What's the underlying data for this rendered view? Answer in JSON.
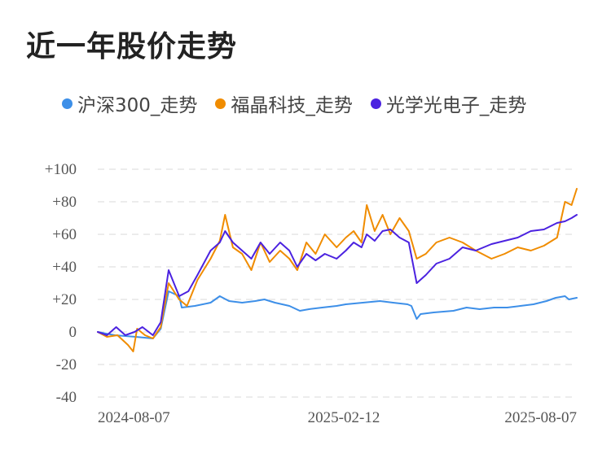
{
  "chart_data": {
    "type": "line",
    "title": "近一年股价走势",
    "xlabel": "",
    "ylabel": "",
    "ylim": [
      -40,
      100
    ],
    "yticks": [
      100,
      80,
      60,
      40,
      20,
      0,
      -20,
      -40
    ],
    "ytick_labels": [
      "+100",
      "+80",
      "+60",
      "+40",
      "+20",
      "0",
      "-20",
      "-40"
    ],
    "x_tick_labels": [
      "2024-08-07",
      "2025-02-12",
      "2025-08-07"
    ],
    "x_range": [
      "2024-08-07",
      "2025-08-07"
    ],
    "grid": "horizontal dashed",
    "legend_position": "top",
    "series": [
      {
        "name": "沪深300_走势",
        "color": "#3d8fe8",
        "points": [
          [
            "2024-08-07",
            0
          ],
          [
            "2024-08-20",
            -2
          ],
          [
            "2024-09-05",
            -3
          ],
          [
            "2024-09-18",
            -4
          ],
          [
            "2024-09-24",
            2
          ],
          [
            "2024-09-30",
            25
          ],
          [
            "2024-10-08",
            22
          ],
          [
            "2024-10-10",
            15
          ],
          [
            "2024-10-20",
            16
          ],
          [
            "2024-11-01",
            18
          ],
          [
            "2024-11-08",
            22
          ],
          [
            "2024-11-15",
            19
          ],
          [
            "2024-11-25",
            18
          ],
          [
            "2024-12-05",
            19
          ],
          [
            "2024-12-12",
            20
          ],
          [
            "2024-12-20",
            18
          ],
          [
            "2024-12-31",
            16
          ],
          [
            "2025-01-08",
            13
          ],
          [
            "2025-01-15",
            14
          ],
          [
            "2025-01-25",
            15
          ],
          [
            "2025-02-05",
            16
          ],
          [
            "2025-02-12",
            17
          ],
          [
            "2025-02-25",
            18
          ],
          [
            "2025-03-10",
            19
          ],
          [
            "2025-03-20",
            18
          ],
          [
            "2025-03-31",
            17
          ],
          [
            "2025-04-03",
            16
          ],
          [
            "2025-04-07",
            8
          ],
          [
            "2025-04-10",
            11
          ],
          [
            "2025-04-20",
            12
          ],
          [
            "2025-05-05",
            13
          ],
          [
            "2025-05-15",
            15
          ],
          [
            "2025-05-25",
            14
          ],
          [
            "2025-06-05",
            15
          ],
          [
            "2025-06-15",
            15
          ],
          [
            "2025-06-25",
            16
          ],
          [
            "2025-07-05",
            17
          ],
          [
            "2025-07-15",
            19
          ],
          [
            "2025-07-22",
            21
          ],
          [
            "2025-07-29",
            22
          ],
          [
            "2025-08-01",
            20
          ],
          [
            "2025-08-07",
            21
          ]
        ]
      },
      {
        "name": "福晶科技_走势",
        "color": "#f08c00",
        "points": [
          [
            "2024-08-07",
            0
          ],
          [
            "2024-08-14",
            -3
          ],
          [
            "2024-08-22",
            -2
          ],
          [
            "2024-08-30",
            -8
          ],
          [
            "2024-09-03",
            -12
          ],
          [
            "2024-09-06",
            2
          ],
          [
            "2024-09-12",
            -2
          ],
          [
            "2024-09-18",
            -4
          ],
          [
            "2024-09-24",
            3
          ],
          [
            "2024-09-30",
            30
          ],
          [
            "2024-10-08",
            20
          ],
          [
            "2024-10-14",
            16
          ],
          [
            "2024-10-22",
            32
          ],
          [
            "2024-11-01",
            45
          ],
          [
            "2024-11-08",
            56
          ],
          [
            "2024-11-12",
            72
          ],
          [
            "2024-11-18",
            52
          ],
          [
            "2024-11-25",
            48
          ],
          [
            "2024-12-02",
            38
          ],
          [
            "2024-12-09",
            55
          ],
          [
            "2024-12-16",
            43
          ],
          [
            "2024-12-24",
            50
          ],
          [
            "2024-12-31",
            45
          ],
          [
            "2025-01-06",
            38
          ],
          [
            "2025-01-13",
            55
          ],
          [
            "2025-01-20",
            48
          ],
          [
            "2025-01-27",
            60
          ],
          [
            "2025-02-05",
            52
          ],
          [
            "2025-02-12",
            58
          ],
          [
            "2025-02-18",
            62
          ],
          [
            "2025-02-24",
            55
          ],
          [
            "2025-02-28",
            78
          ],
          [
            "2025-03-06",
            62
          ],
          [
            "2025-03-12",
            72
          ],
          [
            "2025-03-18",
            60
          ],
          [
            "2025-03-25",
            70
          ],
          [
            "2025-04-01",
            62
          ],
          [
            "2025-04-07",
            45
          ],
          [
            "2025-04-14",
            48
          ],
          [
            "2025-04-22",
            55
          ],
          [
            "2025-05-02",
            58
          ],
          [
            "2025-05-12",
            55
          ],
          [
            "2025-05-22",
            50
          ],
          [
            "2025-06-03",
            45
          ],
          [
            "2025-06-13",
            48
          ],
          [
            "2025-06-23",
            52
          ],
          [
            "2025-07-03",
            50
          ],
          [
            "2025-07-13",
            53
          ],
          [
            "2025-07-23",
            58
          ],
          [
            "2025-07-29",
            80
          ],
          [
            "2025-08-03",
            78
          ],
          [
            "2025-08-07",
            88
          ]
        ]
      },
      {
        "name": "光学光电子_走势",
        "color": "#4b22e0",
        "points": [
          [
            "2024-08-07",
            0
          ],
          [
            "2024-08-14",
            -2
          ],
          [
            "2024-08-21",
            3
          ],
          [
            "2024-08-28",
            -2
          ],
          [
            "2024-09-04",
            0
          ],
          [
            "2024-09-10",
            3
          ],
          [
            "2024-09-18",
            -2
          ],
          [
            "2024-09-24",
            6
          ],
          [
            "2024-09-30",
            38
          ],
          [
            "2024-10-08",
            22
          ],
          [
            "2024-10-15",
            25
          ],
          [
            "2024-10-22",
            35
          ],
          [
            "2024-11-01",
            50
          ],
          [
            "2024-11-08",
            55
          ],
          [
            "2024-11-12",
            62
          ],
          [
            "2024-11-18",
            55
          ],
          [
            "2024-11-25",
            50
          ],
          [
            "2024-12-02",
            45
          ],
          [
            "2024-12-09",
            55
          ],
          [
            "2024-12-16",
            48
          ],
          [
            "2024-12-24",
            55
          ],
          [
            "2024-12-31",
            50
          ],
          [
            "2025-01-06",
            40
          ],
          [
            "2025-01-13",
            48
          ],
          [
            "2025-01-20",
            44
          ],
          [
            "2025-01-27",
            48
          ],
          [
            "2025-02-05",
            45
          ],
          [
            "2025-02-12",
            50
          ],
          [
            "2025-02-18",
            55
          ],
          [
            "2025-02-24",
            52
          ],
          [
            "2025-02-28",
            60
          ],
          [
            "2025-03-06",
            56
          ],
          [
            "2025-03-12",
            62
          ],
          [
            "2025-03-18",
            63
          ],
          [
            "2025-03-25",
            58
          ],
          [
            "2025-04-01",
            55
          ],
          [
            "2025-04-07",
            30
          ],
          [
            "2025-04-14",
            35
          ],
          [
            "2025-04-22",
            42
          ],
          [
            "2025-05-02",
            45
          ],
          [
            "2025-05-12",
            52
          ],
          [
            "2025-05-22",
            50
          ],
          [
            "2025-06-03",
            54
          ],
          [
            "2025-06-13",
            56
          ],
          [
            "2025-06-23",
            58
          ],
          [
            "2025-07-03",
            62
          ],
          [
            "2025-07-13",
            63
          ],
          [
            "2025-07-23",
            67
          ],
          [
            "2025-07-29",
            68
          ],
          [
            "2025-08-03",
            70
          ],
          [
            "2025-08-07",
            72
          ]
        ]
      }
    ]
  }
}
